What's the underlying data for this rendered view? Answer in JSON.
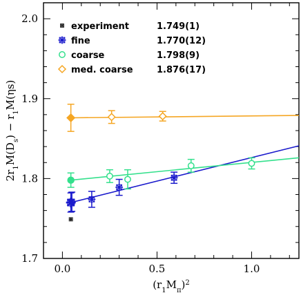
{
  "chart_data": {
    "type": "scatter",
    "xlabel_parts": [
      "(r",
      "1",
      "M",
      "π",
      ")",
      "2"
    ],
    "ylabel_parts": [
      "2r",
      "1",
      "M(D",
      "s",
      ") − r",
      "1",
      "M(",
      "ηs",
      ")"
    ],
    "xlim": [
      -0.1,
      1.25
    ],
    "ylim": [
      1.7,
      2.02
    ],
    "xticks": [
      0.0,
      0.5,
      1.0
    ],
    "xtick_labels": [
      "0.0",
      "0.5",
      "1.0"
    ],
    "yticks": [
      1.7,
      1.8,
      1.9,
      2.0
    ],
    "ytick_labels": [
      "1.7",
      "1.8",
      "1.9",
      "2.0"
    ],
    "legend_position": "top-left",
    "series": [
      {
        "name": "experiment",
        "value_label": "1.749(1)",
        "color": "#222222",
        "marker": "star-small",
        "points": [
          {
            "x": 0.0447,
            "y": 1.749,
            "err": 0.0
          }
        ],
        "fit": null
      },
      {
        "name": "fine",
        "value_label": "1.770(12)",
        "color": "#1a1acc",
        "marker": "star",
        "points": [
          {
            "x": 0.05,
            "y": 1.771,
            "err": 0.012
          },
          {
            "x": 0.155,
            "y": 1.774,
            "err": 0.01
          },
          {
            "x": 0.3,
            "y": 1.789,
            "err": 0.01
          },
          {
            "x": 0.59,
            "y": 1.801,
            "err": 0.007
          }
        ],
        "fit": {
          "x0": 0.0447,
          "y0": 1.77,
          "x1": 1.25,
          "y1": 1.841
        }
      },
      {
        "name": "coarse",
        "value_label": "1.798(9)",
        "color": "#33e08c",
        "marker": "circle",
        "points": [
          {
            "x": 0.25,
            "y": 1.803,
            "err": 0.008
          },
          {
            "x": 0.345,
            "y": 1.799,
            "err": 0.012
          },
          {
            "x": 0.68,
            "y": 1.816,
            "err": 0.008
          },
          {
            "x": 1.0,
            "y": 1.819,
            "err": 0.007
          }
        ],
        "fit": {
          "x0": 0.0447,
          "y0": 1.798,
          "x1": 1.25,
          "y1": 1.826
        }
      },
      {
        "name": "med. coarse",
        "value_label": "1.876(17)",
        "color": "#f5a623",
        "marker": "diamond",
        "points": [
          {
            "x": 0.26,
            "y": 1.877,
            "err": 0.008
          },
          {
            "x": 0.53,
            "y": 1.878,
            "err": 0.006
          }
        ],
        "fit": {
          "x0": 0.0447,
          "y0": 1.876,
          "x1": 1.25,
          "y1": 1.879
        }
      }
    ],
    "extrapolated_points": [
      {
        "series": "fine",
        "x": 0.0447,
        "y": 1.77,
        "err": 0.012
      },
      {
        "series": "coarse",
        "x": 0.0447,
        "y": 1.798,
        "err": 0.009
      },
      {
        "series": "med. coarse",
        "x": 0.0447,
        "y": 1.876,
        "err": 0.017
      }
    ]
  }
}
